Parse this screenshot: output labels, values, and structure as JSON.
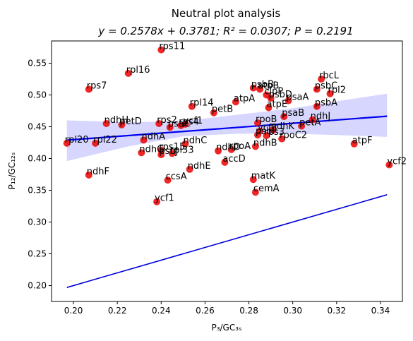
{
  "chart_data": {
    "type": "scatter",
    "title": "Neutral plot analysis",
    "subtitle": "y = 0.2578x + 0.3781; R² = 0.0307; P = 0.2191",
    "xlabel": "P₃/GC₃ₛ",
    "ylabel": "P₁₂/GC₁₂ₛ",
    "xlim": [
      0.19,
      0.35
    ],
    "ylim": [
      0.175,
      0.585
    ],
    "xticks": [
      0.2,
      0.22,
      0.24,
      0.26,
      0.28,
      0.3,
      0.32,
      0.34
    ],
    "yticks": [
      0.2,
      0.25,
      0.3,
      0.35,
      0.4,
      0.45,
      0.5,
      0.55
    ],
    "regression": {
      "slope": 0.2578,
      "intercept": 0.3781,
      "x_range": [
        0.197,
        0.343
      ]
    },
    "reference_line": {
      "x_range": [
        0.197,
        0.343
      ],
      "y_range": [
        0.197,
        0.343
      ]
    },
    "confidence_band": [
      {
        "x": 0.197,
        "lo": 0.396,
        "hi": 0.46
      },
      {
        "x": 0.225,
        "lo": 0.419,
        "hi": 0.457
      },
      {
        "x": 0.25,
        "lo": 0.435,
        "hi": 0.459
      },
      {
        "x": 0.275,
        "lo": 0.439,
        "hi": 0.469
      },
      {
        "x": 0.3,
        "lo": 0.439,
        "hi": 0.479
      },
      {
        "x": 0.32,
        "lo": 0.437,
        "hi": 0.49
      },
      {
        "x": 0.343,
        "lo": 0.434,
        "hi": 0.502
      }
    ],
    "points": [
      {
        "label": "rps11",
        "x": 0.24,
        "y": 0.571
      },
      {
        "label": "rpl16",
        "x": 0.225,
        "y": 0.534
      },
      {
        "label": "rps7",
        "x": 0.207,
        "y": 0.509
      },
      {
        "label": "rbcL",
        "x": 0.313,
        "y": 0.525
      },
      {
        "label": "psbB",
        "x": 0.282,
        "y": 0.511
      },
      {
        "label": "atpB",
        "x": 0.285,
        "y": 0.509
      },
      {
        "label": "psbC",
        "x": 0.311,
        "y": 0.509
      },
      {
        "label": "rpl2",
        "x": 0.317,
        "y": 0.502
      },
      {
        "label": "clpP",
        "x": 0.288,
        "y": 0.5
      },
      {
        "label": "psbD",
        "x": 0.29,
        "y": 0.495
      },
      {
        "label": "psaA",
        "x": 0.298,
        "y": 0.491
      },
      {
        "label": "atpA",
        "x": 0.274,
        "y": 0.489
      },
      {
        "label": "rpl14",
        "x": 0.254,
        "y": 0.482
      },
      {
        "label": "atpE",
        "x": 0.289,
        "y": 0.48
      },
      {
        "label": "psbA",
        "x": 0.311,
        "y": 0.482
      },
      {
        "label": "petB",
        "x": 0.264,
        "y": 0.472
      },
      {
        "label": "psaB",
        "x": 0.296,
        "y": 0.466
      },
      {
        "label": "ndhJ",
        "x": 0.309,
        "y": 0.461
      },
      {
        "label": "ndhH",
        "x": 0.215,
        "y": 0.455
      },
      {
        "label": "petD",
        "x": 0.222,
        "y": 0.453
      },
      {
        "label": "rps2",
        "x": 0.239,
        "y": 0.455
      },
      {
        "label": "psaC",
        "x": 0.244,
        "y": 0.449
      },
      {
        "label": "rps4",
        "x": 0.249,
        "y": 0.452
      },
      {
        "label": "ycf1",
        "x": 0.251,
        "y": 0.454
      },
      {
        "label": "rpoB",
        "x": 0.284,
        "y": 0.456
      },
      {
        "label": "petA",
        "x": 0.304,
        "y": 0.451
      },
      {
        "label": "ycf3",
        "x": 0.285,
        "y": 0.443
      },
      {
        "label": "ndhK",
        "x": 0.291,
        "y": 0.445
      },
      {
        "label": "rps3",
        "x": 0.288,
        "y": 0.436
      },
      {
        "label": "rpoC2",
        "x": 0.295,
        "y": 0.431
      },
      {
        "label": "psbI",
        "x": 0.284,
        "y": 0.437
      },
      {
        "label": "ndhA",
        "x": 0.232,
        "y": 0.429
      },
      {
        "label": "rpl20",
        "x": 0.197,
        "y": 0.424
      },
      {
        "label": "rpl22",
        "x": 0.21,
        "y": 0.424
      },
      {
        "label": "ndhC",
        "x": 0.251,
        "y": 0.423
      },
      {
        "label": "ndhB",
        "x": 0.283,
        "y": 0.419
      },
      {
        "label": "rpoA",
        "x": 0.272,
        "y": 0.414
      },
      {
        "label": "ndhD",
        "x": 0.266,
        "y": 0.412
      },
      {
        "label": "ndhG",
        "x": 0.231,
        "y": 0.409
      },
      {
        "label": "rps15",
        "x": 0.24,
        "y": 0.413
      },
      {
        "label": "psbJ",
        "x": 0.24,
        "y": 0.406
      },
      {
        "label": "rpl33",
        "x": 0.245,
        "y": 0.408
      },
      {
        "label": "atpF",
        "x": 0.328,
        "y": 0.423
      },
      {
        "label": "ycf2",
        "x": 0.344,
        "y": 0.39
      },
      {
        "label": "accD",
        "x": 0.269,
        "y": 0.394
      },
      {
        "label": "ndhE",
        "x": 0.253,
        "y": 0.383
      },
      {
        "label": "ndhF",
        "x": 0.207,
        "y": 0.374
      },
      {
        "label": "ccsA",
        "x": 0.243,
        "y": 0.366
      },
      {
        "label": "matK",
        "x": 0.282,
        "y": 0.367
      },
      {
        "label": "cemA",
        "x": 0.283,
        "y": 0.347
      },
      {
        "label": "ycf1",
        "x": 0.238,
        "y": 0.332
      }
    ],
    "colors": {
      "points": "#ee0000",
      "regression": "#0000ee",
      "band": "#c8c8ff",
      "reference": "#0000dd"
    }
  }
}
